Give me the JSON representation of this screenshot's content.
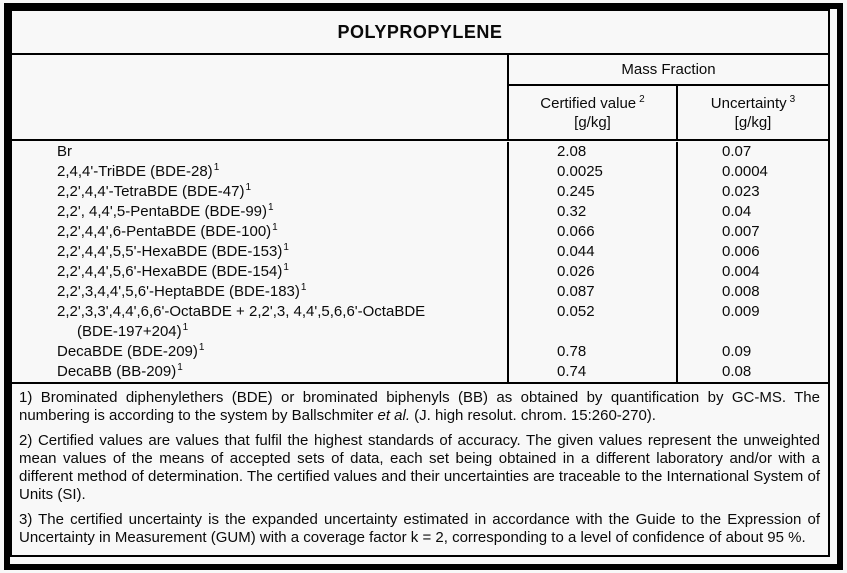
{
  "title": "POLYPROPYLENE",
  "header": {
    "group_label": "Mass Fraction",
    "columns": [
      {
        "label": "Certified value",
        "sup": "2",
        "unit": "[g/kg]"
      },
      {
        "label": "Uncertainty",
        "sup": "3",
        "unit": "[g/kg]"
      }
    ]
  },
  "rows": [
    {
      "name": "Br",
      "sup": "",
      "value": "2.08",
      "uncertainty": "0.07"
    },
    {
      "name": "2,4,4'-TriBDE (BDE-28)",
      "sup": "1",
      "value": "0.0025",
      "uncertainty": "0.0004"
    },
    {
      "name": "2,2',4,4'-TetraBDE (BDE-47)",
      "sup": "1",
      "value": "0.245",
      "uncertainty": "0.023"
    },
    {
      "name": "2,2', 4,4',5-PentaBDE (BDE-99)",
      "sup": "1",
      "value": "0.32",
      "uncertainty": "0.04"
    },
    {
      "name": "2,2',4,4',6-PentaBDE (BDE-100)",
      "sup": "1",
      "value": "0.066",
      "uncertainty": "0.007"
    },
    {
      "name": "2,2',4,4',5,5'-HexaBDE (BDE-153)",
      "sup": "1",
      "value": "0.044",
      "uncertainty": "0.006"
    },
    {
      "name": "2,2',4,4',5,6'-HexaBDE (BDE-154)",
      "sup": "1",
      "value": "0.026",
      "uncertainty": "0.004"
    },
    {
      "name": "2,2',3,4,4',5,6'-HeptaBDE (BDE-183)",
      "sup": "1",
      "value": "0.087",
      "uncertainty": "0.008"
    },
    {
      "name": "2,2',3,3',4,4',6,6'-OctaBDE + 2,2',3, 4,4',5,6,6'-OctaBDE",
      "sup": "",
      "value": "0.052",
      "uncertainty": "0.009"
    },
    {
      "name": "(BDE-197+204)",
      "sup": "1",
      "value": "",
      "uncertainty": ""
    },
    {
      "name": "DecaBDE (BDE-209)",
      "sup": "1",
      "value": "0.78",
      "uncertainty": "0.09"
    },
    {
      "name": "DecaBB (BB-209)",
      "sup": "1",
      "value": "0.74",
      "uncertainty": "0.08"
    }
  ],
  "footnotes": {
    "fn1_pre": "1) Brominated diphenylethers (BDE) or brominated biphenyls (BB) as obtained by quantification by GC-MS. The numbering is according to the system by Ballschmiter ",
    "fn1_italic": "et al.",
    "fn1_post": " (J. high resolut. chrom. 15:260-270).",
    "fn2": "2) Certified values are values that fulfil the highest standards of accuracy. The given values represent the unweighted mean values of the means of accepted sets of data, each set being obtained in a different laboratory and/or with a different method of determination. The certified values and their uncertainties are traceable to the International System of Units (SI).",
    "fn3": "3) The certified uncertainty is the expanded uncertainty estimated in accordance with the Guide to the Expression of Uncertainty in Measurement (GUM) with a coverage factor k = 2, corresponding to a level of confidence of about 95 %."
  }
}
